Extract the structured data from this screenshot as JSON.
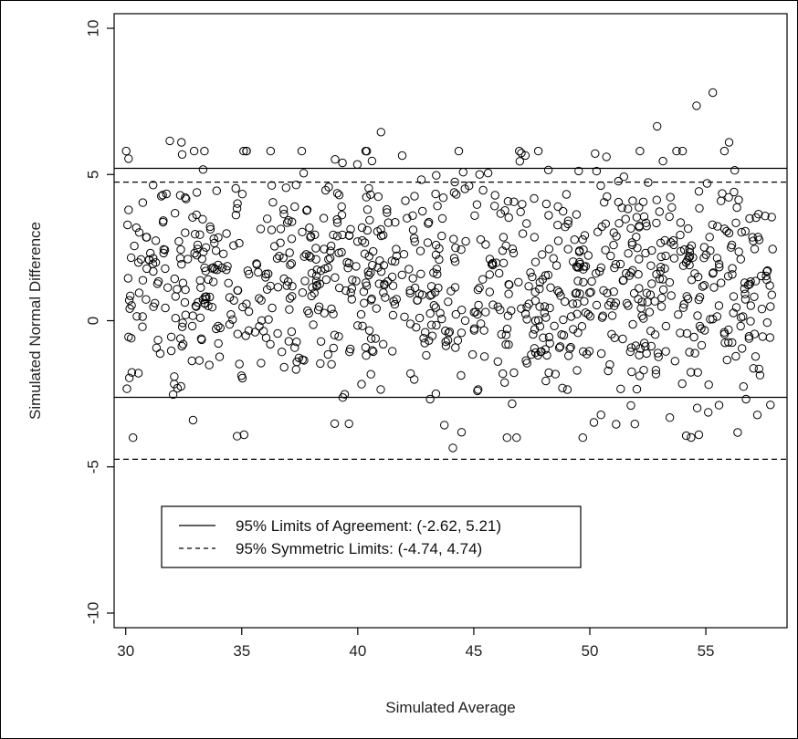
{
  "chart_data": {
    "type": "scatter",
    "xlabel": "Simulated Average",
    "ylabel": "Simulated Normal Difference",
    "xlim": [
      29.5,
      58.5
    ],
    "ylim": [
      -10.5,
      10.5
    ],
    "x_ticks": [
      30,
      35,
      40,
      45,
      50,
      55
    ],
    "y_ticks": [
      -10,
      -5,
      0,
      5,
      10
    ],
    "x_tick_labels": [
      "30",
      "35",
      "40",
      "45",
      "50",
      "55"
    ],
    "y_tick_labels": [
      "-10",
      "-5",
      "0",
      "5",
      "10"
    ],
    "grid": false,
    "legend_position": "bottom-left",
    "lines": [
      {
        "name": "95% Limits of Agreement: (-2.62, 5.21)",
        "style": "solid",
        "values": [
          -2.62,
          5.21
        ]
      },
      {
        "name": "95% Symmetric Limits: (-4.74, 4.74)",
        "style": "dashed",
        "values": [
          -4.74,
          4.74
        ]
      }
    ],
    "point_count": 1000,
    "point_marker": "open-circle",
    "point_generation": {
      "x_min": 30,
      "x_max": 57.9,
      "diff_mean": 1.3,
      "diff_sd": 2.0
    },
    "notable_points": [
      {
        "x": 55.3,
        "y": 7.8
      },
      {
        "x": 54.6,
        "y": 7.35
      },
      {
        "x": 52.9,
        "y": 6.65
      },
      {
        "x": 56.0,
        "y": 6.1
      },
      {
        "x": 41.0,
        "y": 6.45
      },
      {
        "x": 31.9,
        "y": 6.15
      },
      {
        "x": 32.4,
        "y": 6.1
      },
      {
        "x": 44.1,
        "y": -4.35
      },
      {
        "x": 34.8,
        "y": -3.95
      },
      {
        "x": 35.1,
        "y": -3.9
      },
      {
        "x": 54.7,
        "y": -3.9
      },
      {
        "x": 32.9,
        "y": -3.4
      }
    ],
    "colors": {
      "points": "#000000",
      "lines": "#000000",
      "background": "#ffffff"
    }
  }
}
